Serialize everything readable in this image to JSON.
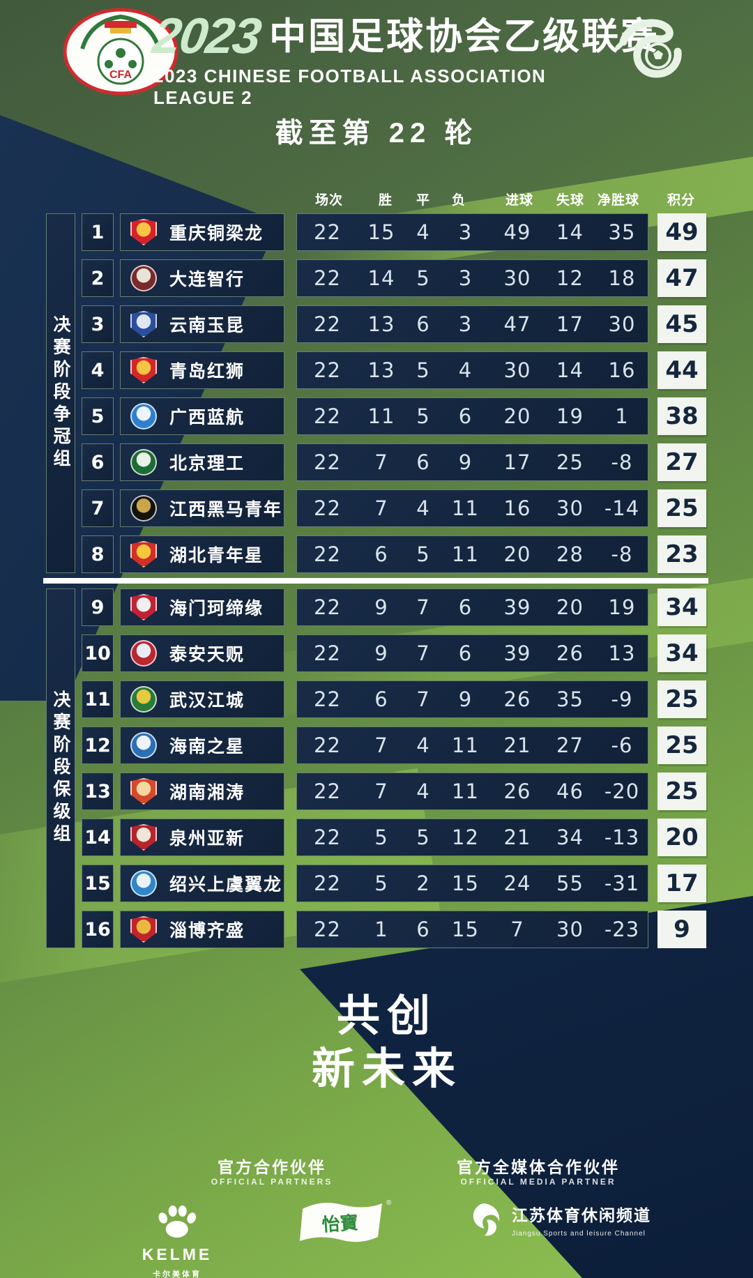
{
  "header": {
    "year_script": "2023",
    "title_cn": "中国足球协会乙级联赛",
    "title_en": "2023 CHINESE FOOTBALL ASSOCIATION LEAGUE 2",
    "cfa_badge_text": "CFA",
    "round_note": "截至第 22 轮"
  },
  "chart_data": {
    "type": "table",
    "title": "2023 中国足球协会乙级联赛 积分榜（截至第 22 轮）",
    "columns": [
      "场次",
      "胜",
      "平",
      "负",
      "进球",
      "失球",
      "净胜球",
      "积分"
    ],
    "groups": [
      {
        "label": "决赛阶段争冠组",
        "rows": [
          {
            "rank": 1,
            "team": "重庆铜梁龙",
            "p": 22,
            "w": 15,
            "d": 4,
            "l": 3,
            "gf": 49,
            "ga": 14,
            "gd": 35,
            "pts": 49,
            "logo": {
              "shape": "shield",
              "c1": "#d8222a",
              "c2": "#f6c545"
            }
          },
          {
            "rank": 2,
            "team": "大连智行",
            "p": 22,
            "w": 14,
            "d": 5,
            "l": 3,
            "gf": 30,
            "ga": 12,
            "gd": 18,
            "pts": 47,
            "logo": {
              "shape": "circle",
              "c1": "#7a2a2a",
              "c2": "#e8e3d8"
            }
          },
          {
            "rank": 3,
            "team": "云南玉昆",
            "p": 22,
            "w": 13,
            "d": 6,
            "l": 3,
            "gf": 47,
            "ga": 17,
            "gd": 30,
            "pts": 45,
            "logo": {
              "shape": "shield",
              "c1": "#2b4f9e",
              "c2": "#dfe7f5"
            }
          },
          {
            "rank": 4,
            "team": "青岛红狮",
            "p": 22,
            "w": 13,
            "d": 5,
            "l": 4,
            "gf": 30,
            "ga": 14,
            "gd": 16,
            "pts": 44,
            "logo": {
              "shape": "shield",
              "c1": "#d42828",
              "c2": "#f3c741"
            }
          },
          {
            "rank": 5,
            "team": "广西蓝航",
            "p": 22,
            "w": 11,
            "d": 5,
            "l": 6,
            "gf": 20,
            "ga": 19,
            "gd": 1,
            "pts": 38,
            "logo": {
              "shape": "circle",
              "c1": "#2f7fd0",
              "c2": "#eef4fb"
            }
          },
          {
            "rank": 6,
            "team": "北京理工",
            "p": 22,
            "w": 7,
            "d": 6,
            "l": 9,
            "gf": 17,
            "ga": 25,
            "gd": -8,
            "pts": 27,
            "logo": {
              "shape": "circle",
              "c1": "#1f6b35",
              "c2": "#e9f2e6"
            }
          },
          {
            "rank": 7,
            "team": "江西黑马青年",
            "p": 22,
            "w": 7,
            "d": 4,
            "l": 11,
            "gf": 16,
            "ga": 30,
            "gd": -14,
            "pts": 25,
            "logo": {
              "shape": "circle",
              "c1": "#14120e",
              "c2": "#caa64b"
            }
          },
          {
            "rank": 8,
            "team": "湖北青年星",
            "p": 22,
            "w": 6,
            "d": 5,
            "l": 11,
            "gf": 20,
            "ga": 28,
            "gd": -8,
            "pts": 23,
            "logo": {
              "shape": "shield",
              "c1": "#d03028",
              "c2": "#f5c83c"
            }
          }
        ]
      },
      {
        "label": "决赛阶段保级组",
        "rows": [
          {
            "rank": 9,
            "team": "海门珂缔缘",
            "p": 22,
            "w": 9,
            "d": 7,
            "l": 6,
            "gf": 39,
            "ga": 20,
            "gd": 19,
            "pts": 34,
            "logo": {
              "shape": "shield",
              "c1": "#c22334",
              "c2": "#f0f0f2"
            }
          },
          {
            "rank": 10,
            "team": "泰安天贶",
            "p": 22,
            "w": 9,
            "d": 7,
            "l": 6,
            "gf": 39,
            "ga": 26,
            "gd": 13,
            "pts": 34,
            "logo": {
              "shape": "circle",
              "c1": "#b92732",
              "c2": "#e8ecf4"
            }
          },
          {
            "rank": 11,
            "team": "武汉江城",
            "p": 22,
            "w": 6,
            "d": 7,
            "l": 9,
            "gf": 26,
            "ga": 35,
            "gd": -9,
            "pts": 25,
            "logo": {
              "shape": "circle",
              "c1": "#2a7a3a",
              "c2": "#e5c93e"
            }
          },
          {
            "rank": 12,
            "team": "海南之星",
            "p": 22,
            "w": 7,
            "d": 4,
            "l": 11,
            "gf": 21,
            "ga": 27,
            "gd": -6,
            "pts": 25,
            "logo": {
              "shape": "circle",
              "c1": "#2b6fb5",
              "c2": "#eef3f9"
            }
          },
          {
            "rank": 13,
            "team": "湖南湘涛",
            "p": 22,
            "w": 7,
            "d": 4,
            "l": 11,
            "gf": 26,
            "ga": 46,
            "gd": -20,
            "pts": 25,
            "logo": {
              "shape": "shield",
              "c1": "#d7492c",
              "c2": "#f3d8a0"
            }
          },
          {
            "rank": 14,
            "team": "泉州亚新",
            "p": 22,
            "w": 5,
            "d": 5,
            "l": 12,
            "gf": 21,
            "ga": 34,
            "gd": -13,
            "pts": 20,
            "logo": {
              "shape": "shield",
              "c1": "#b8242b",
              "c2": "#efe7da"
            }
          },
          {
            "rank": 15,
            "team": "绍兴上虞翼龙",
            "p": 22,
            "w": 5,
            "d": 2,
            "l": 15,
            "gf": 24,
            "ga": 55,
            "gd": -31,
            "pts": 17,
            "logo": {
              "shape": "circle",
              "c1": "#2f86c8",
              "c2": "#eaf2f9"
            }
          },
          {
            "rank": 16,
            "team": "淄博齐盛",
            "p": 22,
            "w": 1,
            "d": 6,
            "l": 15,
            "gf": 7,
            "ga": 30,
            "gd": -23,
            "pts": 9,
            "logo": {
              "shape": "shield",
              "c1": "#c3242b",
              "c2": "#e9b840"
            }
          }
        ]
      }
    ]
  },
  "footer": {
    "slogan_line1": "共创",
    "slogan_line2": "新未来",
    "partners_heading_cn": "官方合作伙伴",
    "partners_heading_en": "OFFICIAL PARTNERS",
    "media_heading_cn": "官方全媒体合作伙伴",
    "media_heading_en": "OFFICIAL MEDIA PARTNER",
    "sponsors": [
      {
        "name": "KELME",
        "caption": "卡尔美体育"
      },
      {
        "name": "怡寶"
      },
      {
        "name": "江苏体育休闲频道",
        "caption": "Jiangsu Sports and leisure Channel"
      }
    ]
  },
  "colors": {
    "navy": "#14263f",
    "navy_deep": "#0e2038",
    "points_bg": "#f2f4ef",
    "points_text": "#15273f",
    "stat_text": "#d9e3eb",
    "mint": "#cdeacd",
    "green_bright": "#8cc04e"
  }
}
